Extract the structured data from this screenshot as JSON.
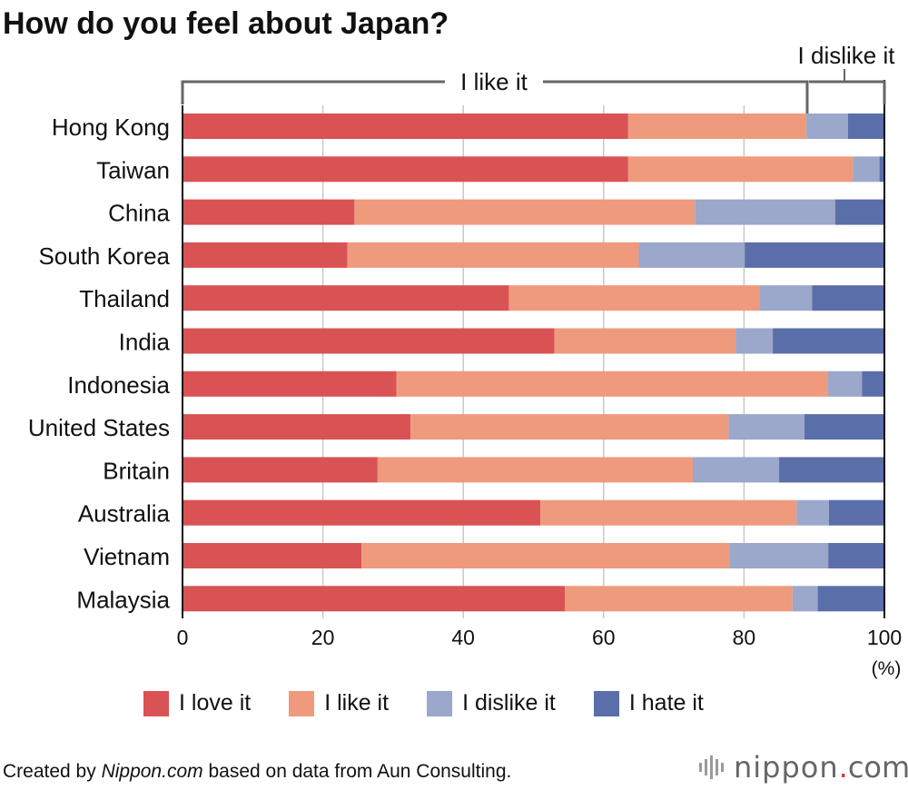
{
  "title": "How do you feel about Japan?",
  "chart_data": {
    "type": "bar",
    "orientation": "horizontal",
    "stacked": true,
    "categories": [
      "Hong Kong",
      "Taiwan",
      "China",
      "South Korea",
      "Thailand",
      "India",
      "Indonesia",
      "United States",
      "Britain",
      "Australia",
      "Vietnam",
      "Malaysia"
    ],
    "series": [
      {
        "name": "I love it",
        "color": "#d95354",
        "values": [
          63.5,
          63.5,
          24.5,
          23.5,
          46.5,
          53,
          30.5,
          32.5,
          27.8,
          51,
          25.5,
          54.5
        ]
      },
      {
        "name": "I like it",
        "color": "#ef9a7c",
        "values": [
          25.4,
          32,
          48.5,
          41.5,
          35.7,
          25.8,
          61.4,
          45.3,
          44.9,
          36.5,
          52.4,
          32.4
        ]
      },
      {
        "name": "I dislike it",
        "color": "#9ba7cb",
        "values": [
          5.9,
          3.8,
          20,
          15.1,
          7.5,
          5.3,
          4.9,
          10.8,
          12.3,
          4.6,
          14.1,
          3.6
        ]
      },
      {
        "name": "I hate it",
        "color": "#5a6ea9",
        "values": [
          5.2,
          0.7,
          7,
          19.9,
          10.3,
          15.9,
          3.2,
          11.4,
          15,
          7.9,
          8,
          9.5
        ]
      }
    ],
    "xlim": [
      0,
      100
    ],
    "xticks": [
      "0",
      "20",
      "40",
      "60",
      "80",
      "100"
    ],
    "xunit": "(%)",
    "grid": true,
    "legend_position": "bottom",
    "brackets": [
      {
        "label": "I like it",
        "from": 0,
        "to": 89
      },
      {
        "label": "I dislike it",
        "from": 89,
        "to": 100
      }
    ]
  },
  "legend": [
    "I love it",
    "I like it",
    "I dislike it",
    "I hate it"
  ],
  "footer": {
    "prefix": "Created by ",
    "site": "Nippon.com",
    "suffix": " based on data from Aun Consulting."
  },
  "logo": {
    "name": "nippon",
    "dot": ".",
    "tld": "com",
    "bar_color": "#9a9a9a",
    "dot_color": "#d9363e"
  }
}
